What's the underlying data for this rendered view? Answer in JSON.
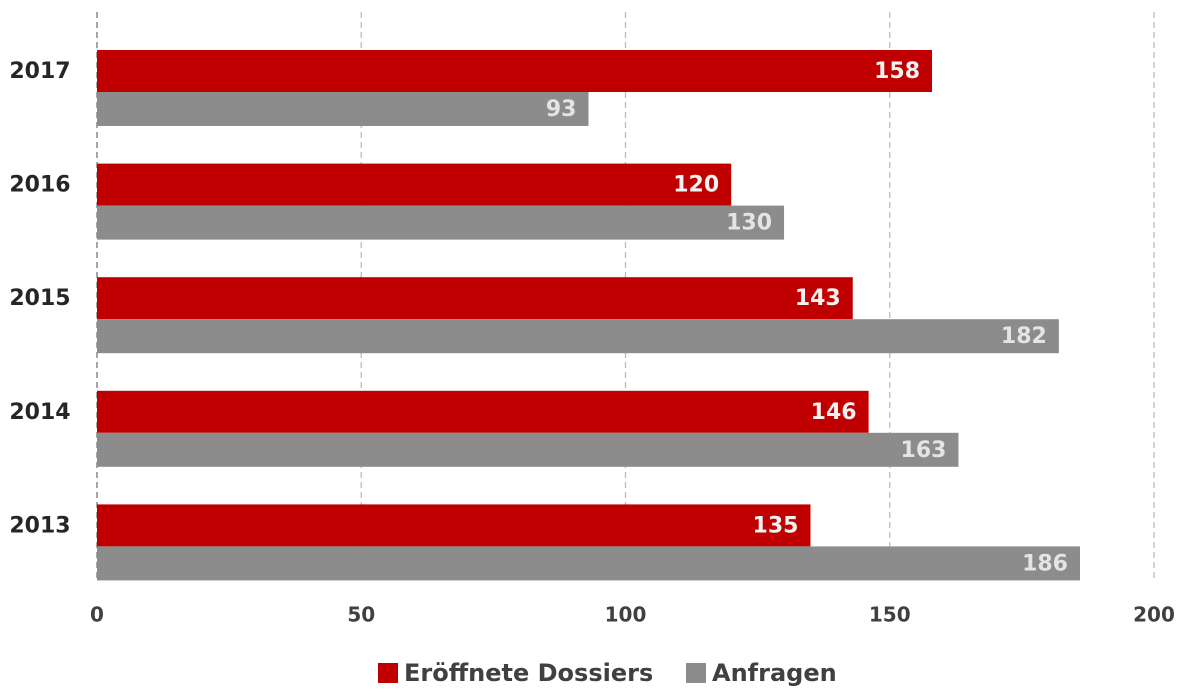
{
  "chart_data": {
    "type": "barh",
    "categories": [
      "2017",
      "2016",
      "2015",
      "2014",
      "2013"
    ],
    "series": [
      {
        "name": "Eröffnete Dossiers",
        "color": "#c00000",
        "values": [
          158,
          120,
          143,
          146,
          135
        ]
      },
      {
        "name": "Anfragen",
        "color": "#8c8c8c",
        "values": [
          93,
          130,
          182,
          163,
          186
        ]
      }
    ],
    "xlim": [
      0,
      200
    ],
    "xticks": [
      0,
      50,
      100,
      150,
      200
    ],
    "grid": true,
    "legend": "bottom"
  }
}
